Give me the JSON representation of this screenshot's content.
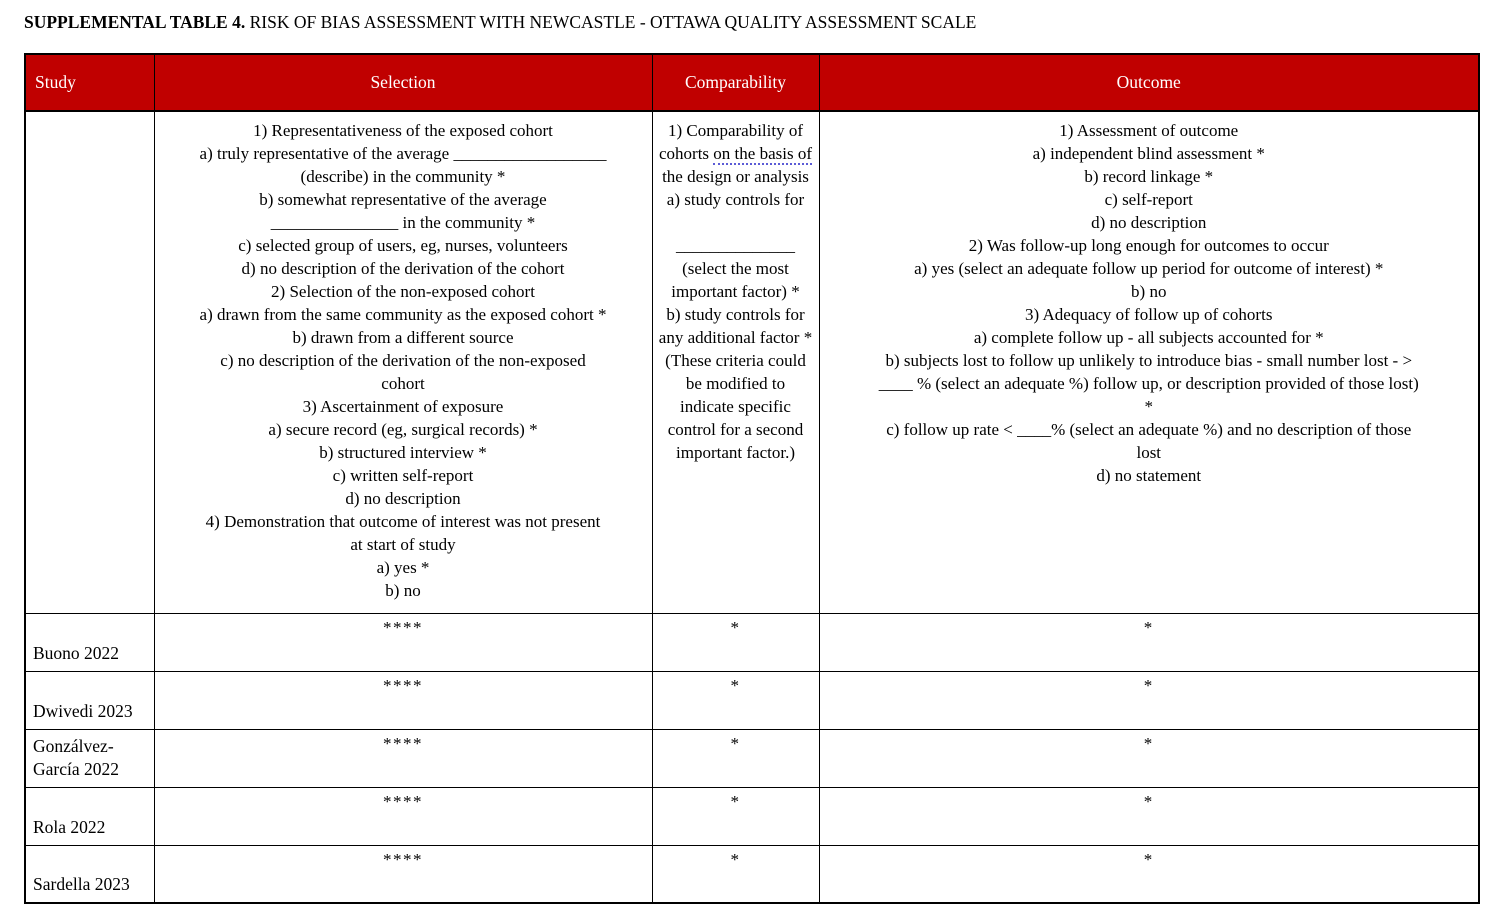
{
  "title": {
    "label_bold": "SUPPLEMENTAL TABLE 4.",
    "label_rest": " RISK OF BIAS ASSESSMENT WITH NEWCASTLE - OTTAWA QUALITY ASSESSMENT SCALE"
  },
  "colors": {
    "header_bg": "#C00000",
    "header_text": "#FFFFFF",
    "border": "#000000",
    "grammar_underline": "#5B5BD6"
  },
  "columns": {
    "study": "Study",
    "selection": "Selection",
    "comparability": "Comparability",
    "outcome": "Outcome"
  },
  "criteria": {
    "selection": "1) Representativeness of the exposed cohort\na) truly representative of the average __________________\n(describe) in the community *\nb) somewhat representative of the average\n_______________ in the community *\nc) selected group of users, eg, nurses, volunteers\nd) no description of the derivation of the cohort\n2) Selection of the non-exposed cohort\na) drawn from the same community as the exposed cohort *\nb) drawn from a different source\nc) no description of the derivation of the non-exposed\ncohort\n3) Ascertainment of exposure\na) secure record (eg, surgical records) *\nb) structured interview *\nc) written self-report\nd) no description\n4) Demonstration that outcome of interest was not present\nat start of study\na) yes *\nb) no",
    "comparability": {
      "pre": "1) Comparability of cohorts ",
      "underlined": "on the basis of",
      "post": " the design or analysis\na) study controls for\n\n______________\n(select the most important factor) *\nb) study controls for any additional factor * (These criteria could be modified to indicate specific control for a second important factor.)"
    },
    "outcome": "1) Assessment of outcome\na) independent blind assessment *\nb) record linkage *\nc) self-report\nd) no description\n2) Was follow-up long enough for outcomes to occur\na) yes (select an adequate follow up period for outcome of interest) *\nb) no\n3) Adequacy of follow up of cohorts\na) complete follow up - all subjects accounted for *\nb) subjects lost to follow up unlikely to introduce bias - small number lost - >\n____ % (select an adequate %) follow up, or description provided of those lost)\n*\nc) follow up rate < ____% (select an adequate %) and no description of those\nlost\nd) no statement"
  },
  "rows": [
    {
      "study": "Buono 2022",
      "selection": "****",
      "comparability": "*",
      "outcome": "*"
    },
    {
      "study": "Dwivedi 2023",
      "selection": "****",
      "comparability": "*",
      "outcome": "*"
    },
    {
      "study": "Gonzálvez-García 2022",
      "selection": "****",
      "comparability": "*",
      "outcome": "*"
    },
    {
      "study": "Rola 2022",
      "selection": "****",
      "comparability": "*",
      "outcome": "*"
    },
    {
      "study": "Sardella 2023",
      "selection": "****",
      "comparability": "*",
      "outcome": "*"
    }
  ]
}
